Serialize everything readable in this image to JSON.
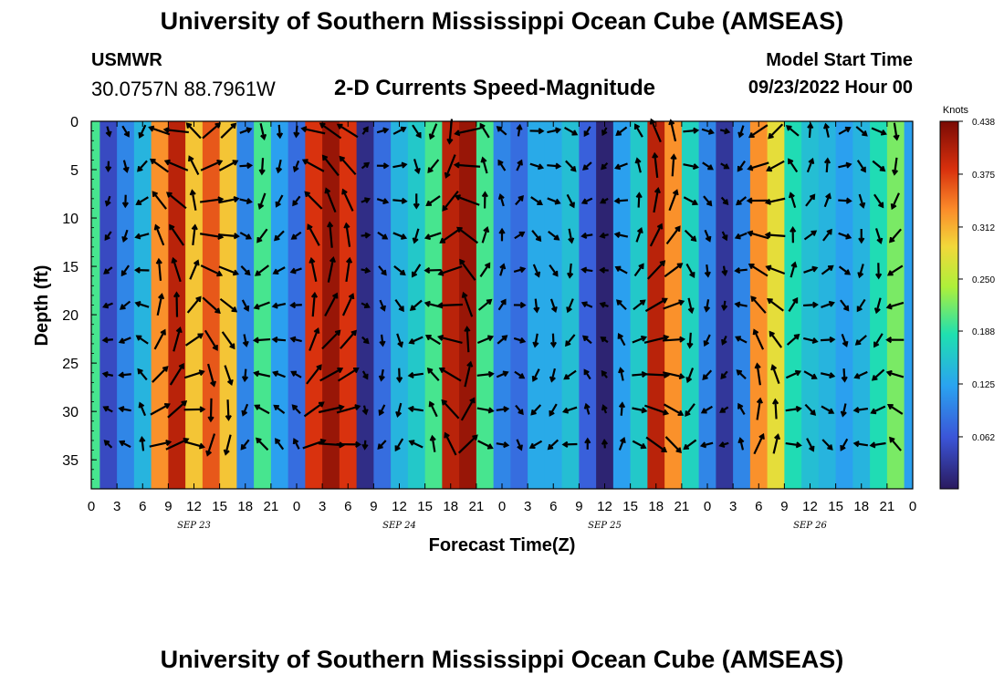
{
  "header": {
    "title": "University of Southern Mississippi Ocean Cube (AMSEAS)",
    "station": "USMWR",
    "coords": "30.0757N  88.7961W",
    "subtitle": "2-D Currents Speed-Magnitude",
    "start_label": "Model Start Time",
    "start_value": "09/23/2022 Hour 00"
  },
  "footer": {
    "title": "University of Southern Mississippi Ocean Cube (AMSEAS)"
  },
  "chart_data": {
    "type": "heatmap",
    "title": "2-D Currents Speed-Magnitude",
    "xlabel": "Forecast Time(Z)",
    "ylabel": "Depth (ft)",
    "x_range_hours": [
      0,
      96
    ],
    "ylim": [
      0,
      38
    ],
    "y_ticks": [
      0,
      5,
      10,
      15,
      20,
      25,
      30,
      35
    ],
    "x_tick_labels": [
      "0",
      "3",
      "6",
      "9",
      "12",
      "15",
      "18",
      "21",
      "0",
      "3",
      "6",
      "9",
      "12",
      "15",
      "18",
      "21",
      "0",
      "3",
      "6",
      "9",
      "12",
      "15",
      "18",
      "21",
      "0",
      "3",
      "6",
      "9",
      "12",
      "15",
      "18",
      "21",
      "0"
    ],
    "date_labels": [
      {
        "label": "SEP 23",
        "hour": 12
      },
      {
        "label": "SEP 24",
        "hour": 36
      },
      {
        "label": "SEP 25",
        "hour": 60
      },
      {
        "label": "SEP 26",
        "hour": 84
      }
    ],
    "colorbar": {
      "units": "Knots",
      "min": 0.0,
      "max": 0.438,
      "ticks": [
        0.062,
        0.125,
        0.188,
        0.25,
        0.312,
        0.375,
        0.438
      ],
      "tick_labels": [
        "0.062",
        "0.125",
        "0.188",
        "0.250",
        "0.312",
        "0.375",
        "0.438"
      ]
    },
    "surface_speed_knots": [
      {
        "hour": 0,
        "speed": 0.2
      },
      {
        "hour": 2,
        "speed": 0.05
      },
      {
        "hour": 4,
        "speed": 0.1
      },
      {
        "hour": 6,
        "speed": 0.14
      },
      {
        "hour": 8,
        "speed": 0.33
      },
      {
        "hour": 10,
        "speed": 0.4
      },
      {
        "hour": 12,
        "speed": 0.3
      },
      {
        "hour": 14,
        "speed": 0.36
      },
      {
        "hour": 16,
        "speed": 0.3
      },
      {
        "hour": 18,
        "speed": 0.1
      },
      {
        "hour": 20,
        "speed": 0.2
      },
      {
        "hour": 22,
        "speed": 0.12
      },
      {
        "hour": 24,
        "speed": 0.08
      },
      {
        "hour": 26,
        "speed": 0.38
      },
      {
        "hour": 28,
        "speed": 0.42
      },
      {
        "hour": 30,
        "speed": 0.38
      },
      {
        "hour": 32,
        "speed": 0.02
      },
      {
        "hour": 34,
        "speed": 0.08
      },
      {
        "hour": 36,
        "speed": 0.14
      },
      {
        "hour": 38,
        "speed": 0.16
      },
      {
        "hour": 40,
        "speed": 0.2
      },
      {
        "hour": 42,
        "speed": 0.4
      },
      {
        "hour": 44,
        "speed": 0.42
      },
      {
        "hour": 46,
        "speed": 0.2
      },
      {
        "hour": 48,
        "speed": 0.1
      },
      {
        "hour": 50,
        "speed": 0.08
      },
      {
        "hour": 52,
        "speed": 0.13
      },
      {
        "hour": 54,
        "speed": 0.13
      },
      {
        "hour": 56,
        "speed": 0.15
      },
      {
        "hour": 58,
        "speed": 0.07
      },
      {
        "hour": 60,
        "speed": 0.01
      },
      {
        "hour": 62,
        "speed": 0.12
      },
      {
        "hour": 64,
        "speed": 0.16
      },
      {
        "hour": 66,
        "speed": 0.4
      },
      {
        "hour": 68,
        "speed": 0.33
      },
      {
        "hour": 70,
        "speed": 0.17
      },
      {
        "hour": 72,
        "speed": 0.1
      },
      {
        "hour": 74,
        "speed": 0.03
      },
      {
        "hour": 76,
        "speed": 0.1
      },
      {
        "hour": 78,
        "speed": 0.33
      },
      {
        "hour": 80,
        "speed": 0.28
      },
      {
        "hour": 82,
        "speed": 0.18
      },
      {
        "hour": 84,
        "speed": 0.15
      },
      {
        "hour": 86,
        "speed": 0.14
      },
      {
        "hour": 88,
        "speed": 0.12
      },
      {
        "hour": 90,
        "speed": 0.14
      },
      {
        "hour": 92,
        "speed": 0.18
      },
      {
        "hour": 94,
        "speed": 0.22
      },
      {
        "hour": 96,
        "speed": 0.12
      }
    ]
  }
}
